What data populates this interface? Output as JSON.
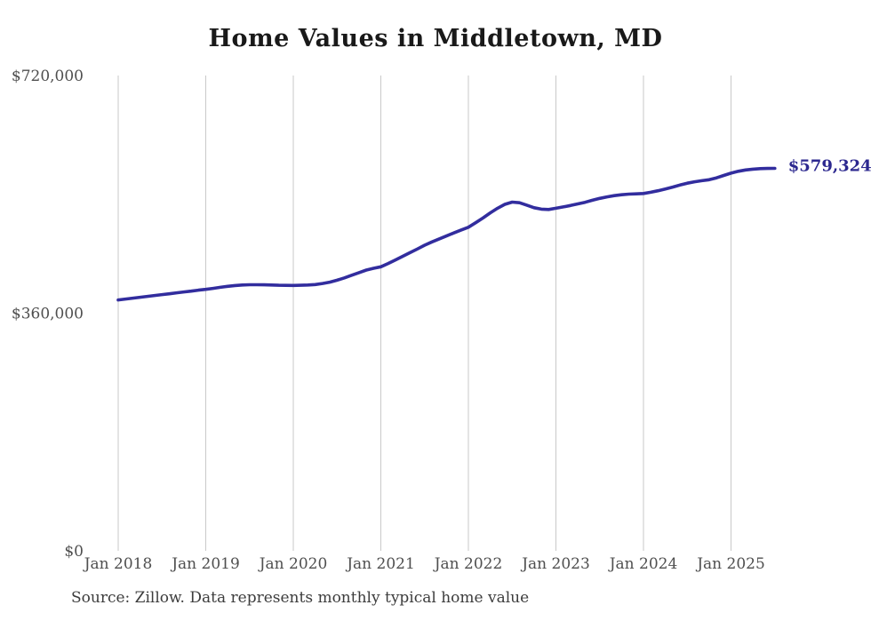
{
  "title": "Home Values in Middletown, MD",
  "source_note": "Source: Zillow. Data represents monthly typical home value",
  "colors": {
    "line": "#322d9e",
    "end_label_text": "#2c288f",
    "grid": "#c9c9c9",
    "axis_text": "#4f4f4f",
    "title_text": "#191919"
  },
  "chart_data": {
    "type": "line",
    "title": "Home Values in Middletown, MD",
    "xlabel": "",
    "ylabel": "",
    "legend": "none",
    "grid": "vertical-only",
    "ylim": [
      0,
      720000
    ],
    "x_start_month": "2018-01",
    "x_end_month": "2025-07",
    "x_tick_labels": [
      "Jan 2018",
      "Jan 2019",
      "Jan 2020",
      "Jan 2021",
      "Jan 2022",
      "Jan 2023",
      "Jan 2024",
      "Jan 2025"
    ],
    "y_tick_values": [
      0,
      360000,
      720000
    ],
    "y_tick_labels": [
      "$0",
      "$360,000",
      "$720,000"
    ],
    "end_label": "$579,324",
    "end_value": 579324,
    "series_name": "Monthly typical home value",
    "values": [
      380000,
      381400,
      382800,
      384100,
      385400,
      386800,
      388100,
      389400,
      390800,
      392100,
      393400,
      394800,
      396100,
      397600,
      399100,
      400600,
      401900,
      402700,
      403100,
      403100,
      402900,
      402600,
      402300,
      402100,
      402000,
      402200,
      402600,
      403400,
      404900,
      407000,
      409900,
      413400,
      417400,
      421400,
      425300,
      427900,
      430200,
      435200,
      440600,
      446100,
      451600,
      457200,
      462900,
      467900,
      472500,
      477000,
      481500,
      485900,
      490200,
      497000,
      504100,
      511900,
      518900,
      524800,
      528200,
      527300,
      523600,
      519700,
      517600,
      517100,
      518900,
      521000,
      523100,
      525500,
      528000,
      531000,
      533900,
      536100,
      538000,
      539400,
      540300,
      540800,
      541300,
      543100,
      545500,
      548100,
      551000,
      554000,
      556900,
      559000,
      560600,
      562200,
      565000,
      568600,
      572100,
      574900,
      576900,
      578200,
      578900,
      579200,
      579324
    ]
  }
}
